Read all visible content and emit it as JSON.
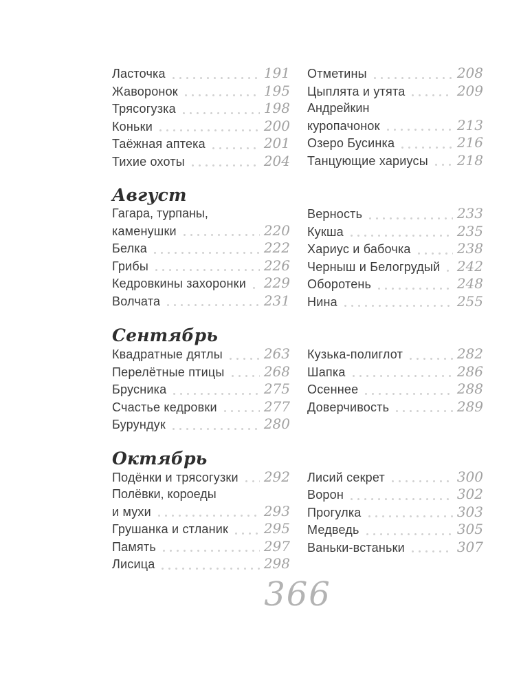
{
  "page": {
    "folio": "366"
  },
  "colors": {
    "text": "#3c3c3c",
    "page_number": "#a2a2a2",
    "dot_leader": "#d2d2d2",
    "heading": "#2e2e2e",
    "folio": "#b3b3b3",
    "paper": "#ffffff"
  },
  "toc": {
    "sections": [
      {
        "heading": null,
        "left": [
          {
            "lines": [
              "Ласточка"
            ],
            "page": "191"
          },
          {
            "lines": [
              "Жаворонок"
            ],
            "page": "195"
          },
          {
            "lines": [
              "Трясогузка"
            ],
            "page": "198"
          },
          {
            "lines": [
              "Коньки"
            ],
            "page": "200"
          },
          {
            "lines": [
              "Таёжная аптека"
            ],
            "page": "201"
          },
          {
            "lines": [
              "Тихие охоты"
            ],
            "page": "204"
          }
        ],
        "right": [
          {
            "lines": [
              "Отметины"
            ],
            "page": "208"
          },
          {
            "lines": [
              "Цыплята и утята"
            ],
            "page": "209"
          },
          {
            "lines": [
              "Андрейкин",
              "куропачонок"
            ],
            "page": "213"
          },
          {
            "lines": [
              "Озеро Бусинка"
            ],
            "page": "216"
          },
          {
            "lines": [
              "Танцующие хариусы"
            ],
            "page": "218"
          }
        ]
      },
      {
        "heading": "Август",
        "left": [
          {
            "lines": [
              "Гагара, турпаны,",
              "каменушки"
            ],
            "page": "220"
          },
          {
            "lines": [
              "Белка"
            ],
            "page": "222"
          },
          {
            "lines": [
              "Грибы"
            ],
            "page": "226"
          },
          {
            "lines": [
              "Кедровкины захоронки"
            ],
            "page": "229"
          },
          {
            "lines": [
              "Волчата"
            ],
            "page": "231"
          }
        ],
        "right": [
          {
            "lines": [
              "Верность"
            ],
            "page": "233"
          },
          {
            "lines": [
              "Кукша"
            ],
            "page": "235"
          },
          {
            "lines": [
              "Хариус и бабочка"
            ],
            "page": "238"
          },
          {
            "lines": [
              "Черныш и Белогрудый"
            ],
            "page": "242"
          },
          {
            "lines": [
              "Оборотень"
            ],
            "page": "248"
          },
          {
            "lines": [
              "Нина"
            ],
            "page": "255"
          }
        ]
      },
      {
        "heading": "Сентябрь",
        "left": [
          {
            "lines": [
              "Квадратные дятлы"
            ],
            "page": "263"
          },
          {
            "lines": [
              "Перелётные птицы"
            ],
            "page": "268"
          },
          {
            "lines": [
              "Брусника"
            ],
            "page": "275"
          },
          {
            "lines": [
              "Счастье кедровки"
            ],
            "page": "277"
          },
          {
            "lines": [
              "Бурундук"
            ],
            "page": "280"
          }
        ],
        "right": [
          {
            "lines": [
              "Кузька-полиглот"
            ],
            "page": "282"
          },
          {
            "lines": [
              "Шапка"
            ],
            "page": "286"
          },
          {
            "lines": [
              "Осеннее"
            ],
            "page": "288"
          },
          {
            "lines": [
              "Доверчивость"
            ],
            "page": "289"
          }
        ]
      },
      {
        "heading": "Октябрь",
        "left": [
          {
            "lines": [
              "Подёнки и трясогузки"
            ],
            "page": "292"
          },
          {
            "lines": [
              "Полёвки, короеды",
              "и мухи"
            ],
            "page": "293"
          },
          {
            "lines": [
              "Грушанка и стланик"
            ],
            "page": "295"
          },
          {
            "lines": [
              "Память"
            ],
            "page": "297"
          },
          {
            "lines": [
              "Лисица"
            ],
            "page": "298"
          }
        ],
        "right": [
          {
            "lines": [
              "Лисий секрет"
            ],
            "page": "300"
          },
          {
            "lines": [
              "Ворон"
            ],
            "page": "302"
          },
          {
            "lines": [
              "Прогулка"
            ],
            "page": "303"
          },
          {
            "lines": [
              "Медведь"
            ],
            "page": "305"
          },
          {
            "lines": [
              "Ваньки-встаньки"
            ],
            "page": "307"
          }
        ]
      }
    ]
  }
}
